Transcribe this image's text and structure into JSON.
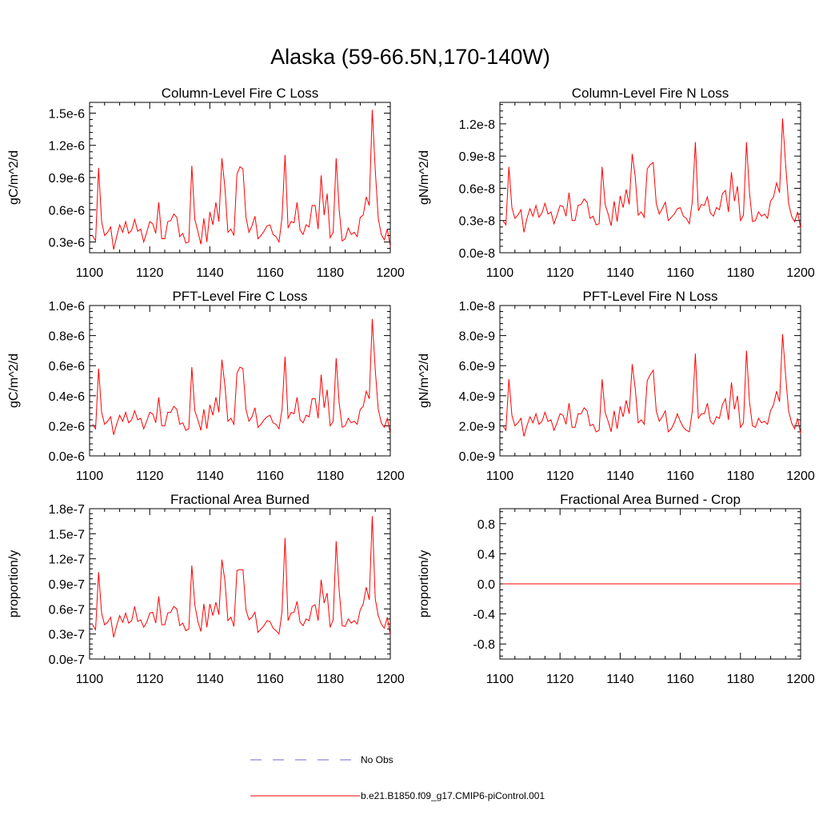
{
  "figure_title": "Alaska (59-66.5N,170-140W)",
  "colors": {
    "model": "#ff0000",
    "obs": "#6a6acd",
    "axis": "#000000"
  },
  "legend": {
    "obs_label": "No Obs",
    "model_label": "b.e21.B1850.f09_g17.CMIP6-piControl.001"
  },
  "chart_data": [
    {
      "type": "line",
      "title": "Column-Level Fire C Loss",
      "xlabel": "",
      "ylabel": "gC/m^2/d",
      "xlim": [
        1100,
        1200
      ],
      "ylim": [
        2e-07,
        1.6e-06
      ],
      "xticks": [
        1100,
        1120,
        1140,
        1160,
        1180,
        1200
      ],
      "xtick_labels": [
        "1100",
        "1120",
        "1140",
        "1160",
        "1180",
        "1200"
      ],
      "yticks": [
        3e-07,
        6e-07,
        9e-07,
        1.2e-06,
        1.5e-06
      ],
      "ytick_labels": [
        "0.3e-6",
        "0.6e-6",
        "0.9e-6",
        "1.2e-6",
        "1.5e-6"
      ],
      "series": [
        {
          "name": "b.e21.B1850.f09_g17.CMIP6-piControl.001",
          "x_start": 1101,
          "values": [
            3.6e-07,
            3.1e-07,
            9.9e-07,
            4.9e-07,
            3.6e-07,
            3.9e-07,
            4.4e-07,
            2.3e-07,
            3.5e-07,
            4.6e-07,
            3.9e-07,
            4.9e-07,
            3.8e-07,
            4.1e-07,
            5.1e-07,
            4e-07,
            4.2e-07,
            3e-07,
            3.9e-07,
            4.9e-07,
            4.7e-07,
            3.8e-07,
            6.7e-07,
            3.3e-07,
            3.3e-07,
            4.9e-07,
            5e-07,
            5.6e-07,
            5.3e-07,
            3.5e-07,
            3.8e-07,
            2.9e-07,
            3e-07,
            1.01e-06,
            5.1e-07,
            4e-07,
            2.8e-07,
            5.2e-07,
            3e-07,
            5.8e-07,
            4.6e-07,
            6.7e-07,
            4.9e-07,
            1.08e-06,
            8.1e-07,
            3.9e-07,
            4.2e-07,
            3.6e-07,
            9.3e-07,
            1e-06,
            9.8e-07,
            5.3e-07,
            3.9e-07,
            4.5e-07,
            5.4e-07,
            3.3e-07,
            3.6e-07,
            4e-07,
            4.5e-07,
            4.6e-07,
            3.7e-07,
            3.5e-07,
            3e-07,
            5.3e-07,
            1.11e-06,
            4.3e-07,
            4.9e-07,
            4.8e-07,
            6.7e-07,
            4.1e-07,
            3.7e-07,
            4.6e-07,
            4.4e-07,
            6.4e-07,
            6.4e-07,
            4.2e-07,
            9.2e-07,
            5.5e-07,
            7.5e-07,
            3.4e-07,
            3.9e-07,
            1.08e-06,
            6e-07,
            3.1e-07,
            3.3e-07,
            4.3e-07,
            3.7e-07,
            3.9e-07,
            3.5e-07,
            5.3e-07,
            5.5e-07,
            7.2e-07,
            6.4e-07,
            1.53e-06,
            9.7e-07,
            5.2e-07,
            3.7e-07,
            3.2e-07,
            4.2e-07,
            2.6e-07
          ]
        }
      ]
    },
    {
      "type": "line",
      "title": "Column-Level Fire N Loss",
      "xlabel": "",
      "ylabel": "gN/m^2/d",
      "xlim": [
        1100,
        1200
      ],
      "ylim": [
        0,
        1.4e-08
      ],
      "xticks": [
        1100,
        1120,
        1140,
        1160,
        1180,
        1200
      ],
      "xtick_labels": [
        "1100",
        "1120",
        "1140",
        "1160",
        "1180",
        "1200"
      ],
      "yticks": [
        0,
        3e-09,
        6e-09,
        9e-09,
        1.2e-08
      ],
      "ytick_labels": [
        "0.0e-8",
        "0.3e-8",
        "0.6e-8",
        "0.9e-8",
        "1.2e-8"
      ],
      "series": [
        {
          "name": "b.e21.B1850.f09_g17.CMIP6-piControl.001",
          "x_start": 1101,
          "values": [
            3e-09,
            2.6e-09,
            8e-09,
            4.2e-09,
            3.2e-09,
            3.5e-09,
            4e-09,
            1.9e-09,
            3.2e-09,
            4.1e-09,
            3.4e-09,
            4.4e-09,
            3.3e-09,
            3.7e-09,
            4.6e-09,
            3.6e-09,
            3.8e-09,
            2.7e-09,
            3.5e-09,
            4.4e-09,
            4.3e-09,
            3.4e-09,
            5.6e-09,
            3e-09,
            3e-09,
            4.4e-09,
            4.5e-09,
            5e-09,
            4.7e-09,
            3.2e-09,
            3.4e-09,
            2.6e-09,
            2.7e-09,
            8e-09,
            4.5e-09,
            3.6e-09,
            2.5e-09,
            4.8e-09,
            2.9e-09,
            5.3e-09,
            4.2e-09,
            5.9e-09,
            4.5e-09,
            9.2e-09,
            7.1e-09,
            3.5e-09,
            3.8e-09,
            3.3e-09,
            7.8e-09,
            8.2e-09,
            8.4e-09,
            4.6e-09,
            3.6e-09,
            4.1e-09,
            4.7e-09,
            3e-09,
            3.3e-09,
            3.6e-09,
            4.1e-09,
            4.2e-09,
            3.4e-09,
            3.2e-09,
            2.7e-09,
            4.8e-09,
            1.03e-08,
            3.9e-09,
            4.5e-09,
            4.4e-09,
            5.2e-09,
            3.7e-09,
            3.4e-09,
            4.2e-09,
            4e-09,
            5.5e-09,
            5.8e-09,
            3.8e-09,
            7.5e-09,
            4.8e-09,
            6.2e-09,
            3e-09,
            3.5e-09,
            1.03e-08,
            5.6e-09,
            2.9e-09,
            3e-09,
            3.8e-09,
            3.4e-09,
            3.6e-09,
            3.2e-09,
            4.8e-09,
            5.2e-09,
            6.5e-09,
            5.6e-09,
            1.25e-08,
            8.3e-09,
            4.6e-09,
            3.4e-09,
            2.9e-09,
            3.8e-09,
            2.3e-09
          ]
        }
      ]
    },
    {
      "type": "line",
      "title": "PFT-Level Fire C Loss",
      "xlabel": "",
      "ylabel": "gC/m^2/d",
      "xlim": [
        1100,
        1200
      ],
      "ylim": [
        0,
        1e-06
      ],
      "xticks": [
        1100,
        1120,
        1140,
        1160,
        1180,
        1200
      ],
      "xtick_labels": [
        "1100",
        "1120",
        "1140",
        "1160",
        "1180",
        "1200"
      ],
      "yticks": [
        0,
        2e-07,
        4e-07,
        6e-07,
        8e-07,
        1e-06
      ],
      "ytick_labels": [
        "0.0e-6",
        "0.2e-6",
        "0.4e-6",
        "0.6e-6",
        "0.8e-6",
        "1.0e-6"
      ],
      "series": [
        {
          "name": "b.e21.B1850.f09_g17.CMIP6-piControl.001",
          "x_start": 1101,
          "values": [
            2.1e-07,
            1.8e-07,
            5.8e-07,
            2.9e-07,
            2.1e-07,
            2.3e-07,
            2.6e-07,
            1.4e-07,
            2.1e-07,
            2.7e-07,
            2.3e-07,
            2.9e-07,
            2.2e-07,
            2.4e-07,
            3e-07,
            2.4e-07,
            2.5e-07,
            1.8e-07,
            2.3e-07,
            2.9e-07,
            2.8e-07,
            2.2e-07,
            3.9e-07,
            2e-07,
            2e-07,
            2.9e-07,
            2.9e-07,
            3.3e-07,
            3.1e-07,
            2.1e-07,
            2.2e-07,
            1.7e-07,
            1.8e-07,
            5.9e-07,
            3e-07,
            2.4e-07,
            1.7e-07,
            3.1e-07,
            1.8e-07,
            3.4e-07,
            2.7e-07,
            3.9e-07,
            2.9e-07,
            6.4e-07,
            4.7e-07,
            2.3e-07,
            2.5e-07,
            2.1e-07,
            5.5e-07,
            5.9e-07,
            5.8e-07,
            3.1e-07,
            2.3e-07,
            2.6e-07,
            3.2e-07,
            1.9e-07,
            2.1e-07,
            2.4e-07,
            2.6e-07,
            2.7e-07,
            2.2e-07,
            2.1e-07,
            1.8e-07,
            3.1e-07,
            6.6e-07,
            2.5e-07,
            2.9e-07,
            2.8e-07,
            3.9e-07,
            2.4e-07,
            2.2e-07,
            2.7e-07,
            2.6e-07,
            3.8e-07,
            3.8e-07,
            2.5e-07,
            5.4e-07,
            3.2e-07,
            4.4e-07,
            2e-07,
            2.3e-07,
            6.5e-07,
            3.5e-07,
            1.9e-07,
            2e-07,
            2.5e-07,
            2.2e-07,
            2.3e-07,
            2.1e-07,
            3.1e-07,
            3.3e-07,
            4.3e-07,
            3.8e-07,
            9.1e-07,
            5.7e-07,
            3.1e-07,
            2.2e-07,
            1.9e-07,
            2.5e-07,
            1.5e-07
          ]
        }
      ]
    },
    {
      "type": "line",
      "title": "PFT-Level Fire N Loss",
      "xlabel": "",
      "ylabel": "gN/m^2/d",
      "xlim": [
        1100,
        1200
      ],
      "ylim": [
        0,
        1e-08
      ],
      "xticks": [
        1100,
        1120,
        1140,
        1160,
        1180,
        1200
      ],
      "xtick_labels": [
        "1100",
        "1120",
        "1140",
        "1160",
        "1180",
        "1200"
      ],
      "yticks": [
        0,
        2e-09,
        4e-09,
        6e-09,
        8e-09,
        1e-08
      ],
      "ytick_labels": [
        "0.0e-9",
        "2.0e-9",
        "4.0e-9",
        "6.0e-9",
        "8.0e-9",
        "1.0e-8"
      ],
      "series": [
        {
          "name": "b.e21.B1850.f09_g17.CMIP6-piControl.001",
          "x_start": 1101,
          "values": [
            2e-09,
            1.7e-09,
            5.1e-09,
            2.7e-09,
            2e-09,
            2.2e-09,
            2.5e-09,
            1.3e-09,
            2e-09,
            2.6e-09,
            2.2e-09,
            2.8e-09,
            2.1e-09,
            2.3e-09,
            2.9e-09,
            2.3e-09,
            2.4e-09,
            1.7e-09,
            2.2e-09,
            2.8e-09,
            2.7e-09,
            2.1e-09,
            3.5e-09,
            1.9e-09,
            1.9e-09,
            2.8e-09,
            2.8e-09,
            3.2e-09,
            3e-09,
            2e-09,
            2.1e-09,
            1.6e-09,
            1.7e-09,
            5.1e-09,
            2.9e-09,
            2.3e-09,
            1.6e-09,
            3e-09,
            1.8e-09,
            3.3e-09,
            2.6e-09,
            3.7e-09,
            2.8e-09,
            6.1e-09,
            4.5e-09,
            2.2e-09,
            2.4e-09,
            2.1e-09,
            5e-09,
            5.4e-09,
            5.7e-09,
            3e-09,
            2.3e-09,
            2.6e-09,
            3e-09,
            1.6e-09,
            1.8e-09,
            2.2e-09,
            2.8e-09,
            2.3e-09,
            1.9e-09,
            1.7e-09,
            1.6e-09,
            3e-09,
            6.8e-09,
            2.5e-09,
            2.8e-09,
            2.8e-09,
            3.5e-09,
            2.3e-09,
            2.1e-09,
            2.6e-09,
            2.5e-09,
            3.4e-09,
            3.8e-09,
            2.4e-09,
            4.9e-09,
            3.1e-09,
            4e-09,
            1.9e-09,
            2.2e-09,
            7e-09,
            3.6e-09,
            2e-09,
            1.9e-09,
            2.5e-09,
            2.2e-09,
            2.3e-09,
            2.1e-09,
            3e-09,
            3.4e-09,
            4.3e-09,
            3.6e-09,
            8.1e-09,
            5.4e-09,
            3e-09,
            2.2e-09,
            1.8e-09,
            2.5e-09,
            1.5e-09
          ]
        }
      ]
    },
    {
      "type": "line",
      "title": "Fractional Area Burned",
      "xlabel": "",
      "ylabel": "proportion/y",
      "xlim": [
        1100,
        1200
      ],
      "ylim": [
        0,
        1.8e-07
      ],
      "xticks": [
        1100,
        1120,
        1140,
        1160,
        1180,
        1200
      ],
      "xtick_labels": [
        "1100",
        "1120",
        "1140",
        "1160",
        "1180",
        "1200"
      ],
      "yticks": [
        0,
        3e-08,
        6e-08,
        9e-08,
        1.2e-07,
        1.5e-07,
        1.8e-07
      ],
      "ytick_labels": [
        "0.0e-7",
        "0.3e-7",
        "0.6e-7",
        "0.9e-7",
        "1.2e-7",
        "1.5e-7",
        "1.8e-7"
      ],
      "series": [
        {
          "name": "b.e21.B1850.f09_g17.CMIP6-piControl.001",
          "x_start": 1101,
          "values": [
            4.1e-08,
            3.5e-08,
            1.04e-07,
            5.5e-08,
            4.1e-08,
            4.4e-08,
            5e-08,
            2.6e-08,
            4e-08,
            5.2e-08,
            4.4e-08,
            5.5e-08,
            4.3e-08,
            4.6e-08,
            6.3e-08,
            4.5e-08,
            4.7e-08,
            3.8e-08,
            4.4e-08,
            5.5e-08,
            5.6e-08,
            4.3e-08,
            7.5e-08,
            4.1e-08,
            4.1e-08,
            5.5e-08,
            5.6e-08,
            6.3e-08,
            6e-08,
            4e-08,
            4.3e-08,
            3.4e-08,
            3.6e-08,
            1.12e-07,
            6.5e-08,
            4.5e-08,
            3.3e-08,
            6.6e-08,
            3.8e-08,
            6.6e-08,
            5.2e-08,
            6.8e-08,
            5.3e-08,
            1.19e-07,
            9.4e-08,
            4.6e-08,
            5e-08,
            3.9e-08,
            1.06e-07,
            1.07e-07,
            1.07e-07,
            5.9e-08,
            4.7e-08,
            5e-08,
            5.6e-08,
            3.2e-08,
            3.6e-08,
            4e-08,
            4.6e-08,
            4.5e-08,
            3.7e-08,
            3.4e-08,
            3e-08,
            5.7e-08,
            1.45e-07,
            4.6e-08,
            5.5e-08,
            5.6e-08,
            6.9e-08,
            4.4e-08,
            4e-08,
            4.8e-08,
            4.6e-08,
            6.3e-08,
            6.5e-08,
            4.6e-08,
            9.5e-08,
            6.7e-08,
            7.9e-08,
            3.8e-08,
            4.7e-08,
            1.41e-07,
            8.2e-08,
            4e-08,
            3.9e-08,
            4.8e-08,
            4.3e-08,
            4.6e-08,
            4.2e-08,
            5.9e-08,
            6.6e-08,
            8.6e-08,
            7.1e-08,
            1.71e-07,
            7.2e-08,
            5.2e-08,
            4.2e-08,
            3.7e-08,
            5e-08,
            2.9e-08
          ]
        }
      ]
    },
    {
      "type": "line",
      "title": "Fractional Area Burned - Crop",
      "xlabel": "",
      "ylabel": "proportion/y",
      "xlim": [
        1100,
        1200
      ],
      "ylim": [
        -1.0,
        1.0
      ],
      "xticks": [
        1100,
        1120,
        1140,
        1160,
        1180,
        1200
      ],
      "xtick_labels": [
        "1100",
        "1120",
        "1140",
        "1160",
        "1180",
        "1200"
      ],
      "yticks": [
        -0.8,
        -0.4,
        0,
        0.4,
        0.8
      ],
      "ytick_labels": [
        "-0.8",
        "-0.4",
        "0.0",
        "0.4",
        "0.8"
      ],
      "series": [
        {
          "name": "b.e21.B1850.f09_g17.CMIP6-piControl.001",
          "x_start": 1101,
          "values": [
            0,
            0,
            0,
            0,
            0,
            0,
            0,
            0,
            0,
            0,
            0,
            0,
            0,
            0,
            0,
            0,
            0,
            0,
            0,
            0,
            0,
            0,
            0,
            0,
            0,
            0,
            0,
            0,
            0,
            0,
            0,
            0,
            0,
            0,
            0,
            0,
            0,
            0,
            0,
            0,
            0,
            0,
            0,
            0,
            0,
            0,
            0,
            0,
            0,
            0,
            0,
            0,
            0,
            0,
            0,
            0,
            0,
            0,
            0,
            0,
            0,
            0,
            0,
            0,
            0,
            0,
            0,
            0,
            0,
            0,
            0,
            0,
            0,
            0,
            0,
            0,
            0,
            0,
            0,
            0,
            0,
            0,
            0,
            0,
            0,
            0,
            0,
            0,
            0,
            0,
            0,
            0,
            0,
            0,
            0,
            0,
            0,
            0,
            0,
            0
          ]
        }
      ]
    }
  ]
}
